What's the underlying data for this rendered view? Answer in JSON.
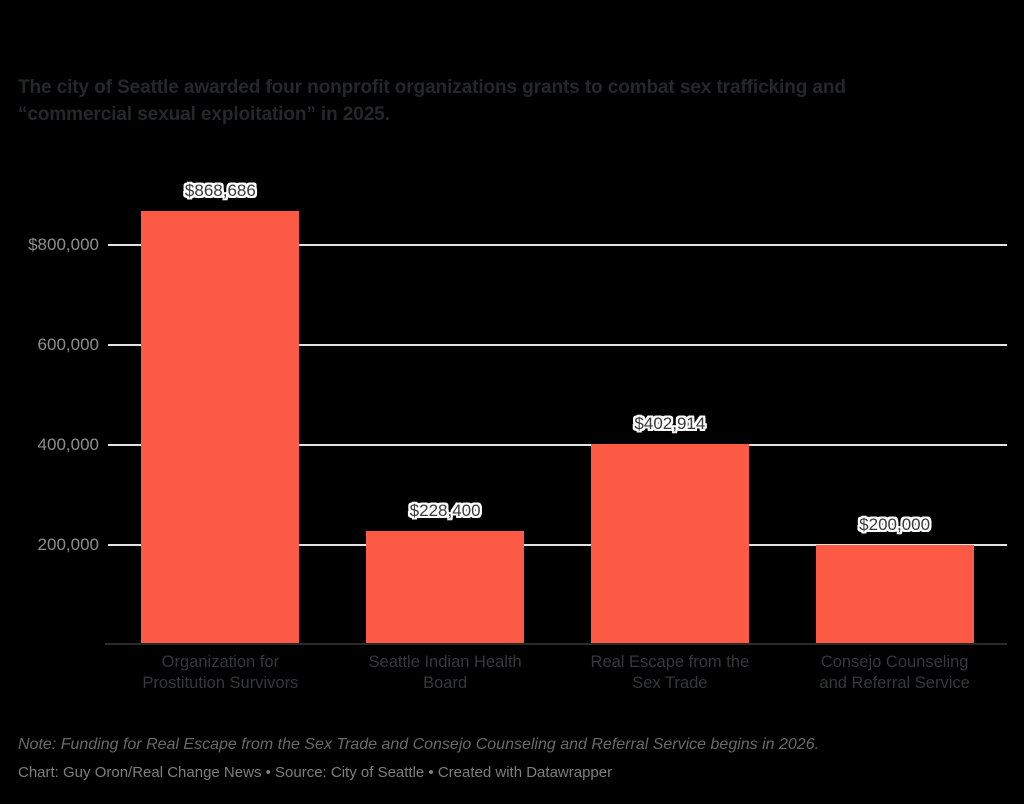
{
  "page": {
    "background_color": "#000000"
  },
  "header": {
    "title_lines": [
      "The city of Seattle awarded four nonprofit organizations grants to combat sex trafficking and",
      "“commercial sexual exploitation” in 2025."
    ]
  },
  "chart_data": {
    "type": "bar",
    "title": "The city of Seattle awarded four nonprofit organizations grants to combat sex trafficking and “commercial sexual exploitation” in 2025.",
    "categories": [
      "Organization for Prostitution Survivors",
      "Seattle Indian Health Board",
      "Real Escape from the Sex Trade",
      "Consejo Counseling and Referral Service"
    ],
    "category_lines": [
      [
        "Organization for",
        "Prostitution Survivors"
      ],
      [
        "Seattle Indian Health",
        "Board"
      ],
      [
        "Real Escape from the",
        "Sex Trade"
      ],
      [
        "Consejo Counseling",
        "and Referral Service"
      ]
    ],
    "values": [
      868686,
      228400,
      402914,
      200000
    ],
    "value_labels": [
      "$868,686",
      "$228,400",
      "$402,914",
      "$200,000"
    ],
    "xlabel": "",
    "ylabel": "",
    "ylim": [
      0,
      1000000
    ],
    "grid": "horizontal",
    "legend": "none",
    "y_ticks": [
      {
        "value": 200000,
        "label": "200,000"
      },
      {
        "value": 400000,
        "label": "400,000"
      },
      {
        "value": 600000,
        "label": "600,000"
      },
      {
        "value": 800000,
        "label": "$800,000"
      }
    ],
    "colors": {
      "bar": "#FC5A45",
      "gridline": "#E3E3E3",
      "baseline": "#2B2B2B",
      "tick_label": "#8E8E8E",
      "value_label": "#3A3A3A",
      "category_label": "#34393B",
      "title": "#24282A",
      "background": "#000000"
    }
  },
  "note": {
    "text": "Note: Funding for Real Escape from the Sex Trade and Consejo Counseling and Referral Service begins in 2026."
  },
  "footer": {
    "text": "Chart: Guy Oron/Real Change News • Source: City of Seattle • Created with Datawrapper"
  }
}
